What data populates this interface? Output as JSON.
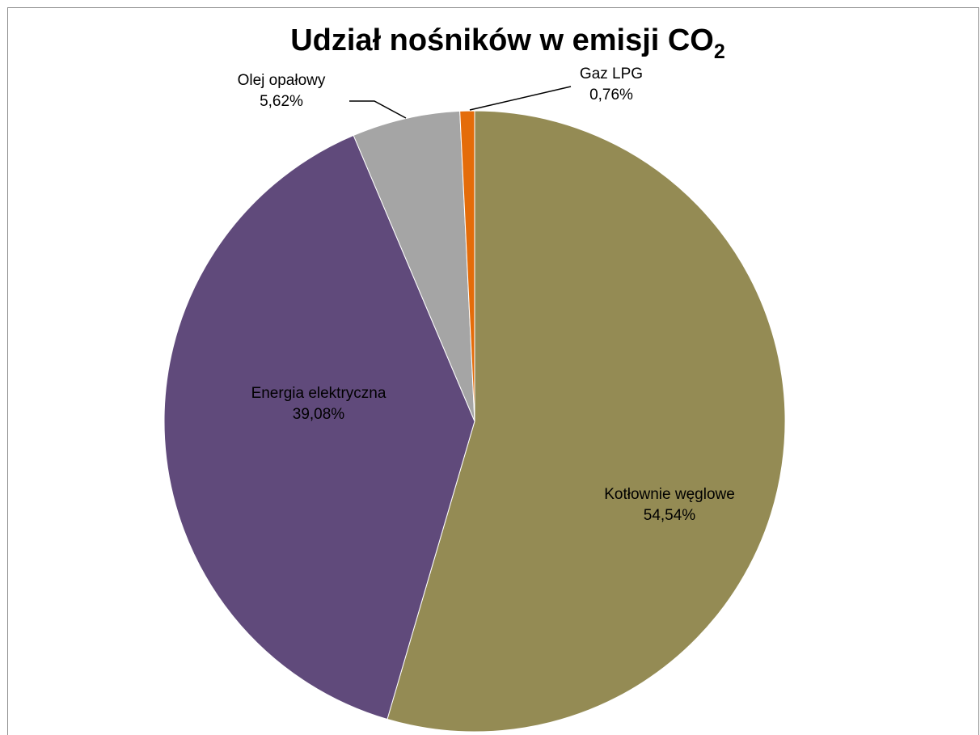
{
  "chart_data": {
    "type": "pie",
    "title": {
      "main": "Udział nośników w emisji CO",
      "subscript": "2"
    },
    "slices": [
      {
        "name": "Kotłownie węglowe",
        "value": 54.54,
        "label": "54,54%",
        "color": "#948b54"
      },
      {
        "name": "Energia elektryczna",
        "value": 39.08,
        "label": "39,08%",
        "color": "#604a7b"
      },
      {
        "name": "Olej opałowy",
        "value": 5.62,
        "label": "5,62%",
        "color": "#a5a5a5"
      },
      {
        "name": "Gaz LPG",
        "value": 0.76,
        "label": "0,76%",
        "color": "#e46c0a"
      }
    ],
    "legend": "none",
    "data_labels": "category-and-percent"
  }
}
